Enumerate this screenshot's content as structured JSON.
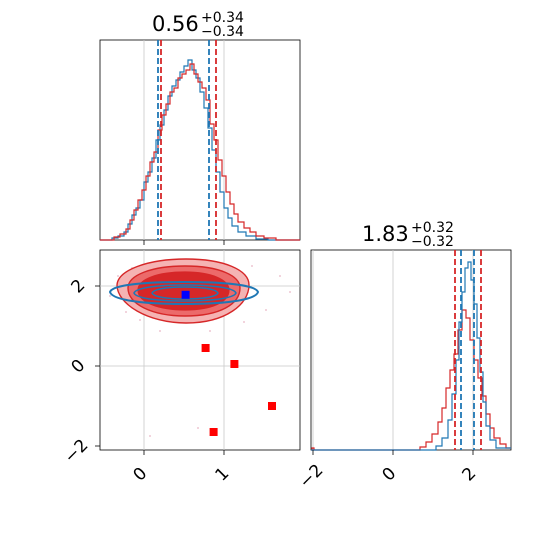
{
  "colors": {
    "blue": "#1f77b4",
    "red": "#d62728",
    "marker_red": "#ff0000",
    "marker_blue": "#0000ff",
    "grid": "#c8c8c8",
    "fill_light": "#f5b3b3",
    "fill_mid": "#ec6a6a",
    "fill_dark": "#d62728"
  },
  "titles": {
    "p0": {
      "median": "0.56",
      "plus": "+0.34",
      "minus": "−0.34"
    },
    "p1": {
      "median": "1.83",
      "plus": "+0.32",
      "minus": "−0.32"
    }
  },
  "ticks": {
    "x0": [
      "0",
      "1"
    ],
    "y1": [
      "−2",
      "0",
      "2"
    ],
    "x1": [
      "−2",
      "0",
      "2"
    ]
  },
  "chart_data": [
    {
      "type": "histogram",
      "panel": "marginal-p0",
      "xlim": [
        -0.55,
        1.95
      ],
      "series": [
        {
          "name": "",
          "color": "#1f77b4",
          "quantiles": [
            0.22,
            0.56,
            0.82
          ]
        },
        {
          "name": "",
          "color": "#d62728",
          "quantiles": [
            0.24,
            0.56,
            0.9
          ]
        }
      ]
    },
    {
      "type": "histogram",
      "panel": "marginal-p1",
      "xlim": [
        -2.05,
        2.95
      ],
      "series": [
        {
          "name": "",
          "color": "#1f77b4",
          "quantiles": [
            1.7,
            1.83,
            2.05
          ]
        },
        {
          "name": "",
          "color": "#d62728",
          "quantiles": [
            1.58,
            1.83,
            2.2
          ]
        }
      ]
    },
    {
      "type": "scatter",
      "panel": "joint-p0-p1",
      "xlim": [
        -0.55,
        1.95
      ],
      "ylim": [
        -2.05,
        2.95
      ],
      "points": [
        {
          "x": 0.77,
          "y": 0.5,
          "color": "#ff0000"
        },
        {
          "x": 1.13,
          "y": 0.1,
          "color": "#ff0000"
        },
        {
          "x": 1.6,
          "y": -0.95,
          "color": "#ff0000"
        },
        {
          "x": 0.87,
          "y": -1.6,
          "color": "#ff0000"
        },
        {
          "x": 0.52,
          "y": 1.83,
          "color": "#0000ff"
        }
      ]
    }
  ]
}
